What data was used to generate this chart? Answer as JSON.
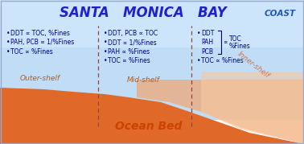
{
  "title": "SANTA   MONICA   BAY",
  "title_color": "#2020cc",
  "coast_label": "COAST",
  "coast_color": "#2255bb",
  "water_color": "#a8d4f0",
  "sand_dark": "#e06828",
  "sand_light": "#f5b890",
  "outer_shelf_label": "Outer-shelf",
  "mid_shelf_label": "Mid-shelf",
  "inner_shelf_label": "Inner-shelf",
  "ocean_bed_label": "Ocean Bed",
  "ocean_bed_color": "#cc4400",
  "shelf_label_color": "#cc5500",
  "inner_shelf_color": "#cc7755",
  "dashed_line_color": "#994444",
  "text_color": "#000088",
  "bullet_color": "#000088",
  "outer_bullets": [
    "DDT ∝ TOC, %Fines",
    "PAH, PCB ∝ 1/%Fines",
    "TOC ∝ %Fines"
  ],
  "mid_bullets": [
    "DDT, PCB ∝ TOC",
    "DDT ∝ 1/%Fines",
    "PAH ∝ %Fines",
    "TOC ∝ %Fines"
  ],
  "inner_grouped": [
    "DDT",
    "PAH",
    "PCB"
  ],
  "inner_prop": "∝",
  "inner_right": [
    "TOC",
    "%Fines"
  ],
  "inner_last": "TOC ∝ %Fines",
  "figsize": [
    3.78,
    1.79
  ],
  "dpi": 100
}
